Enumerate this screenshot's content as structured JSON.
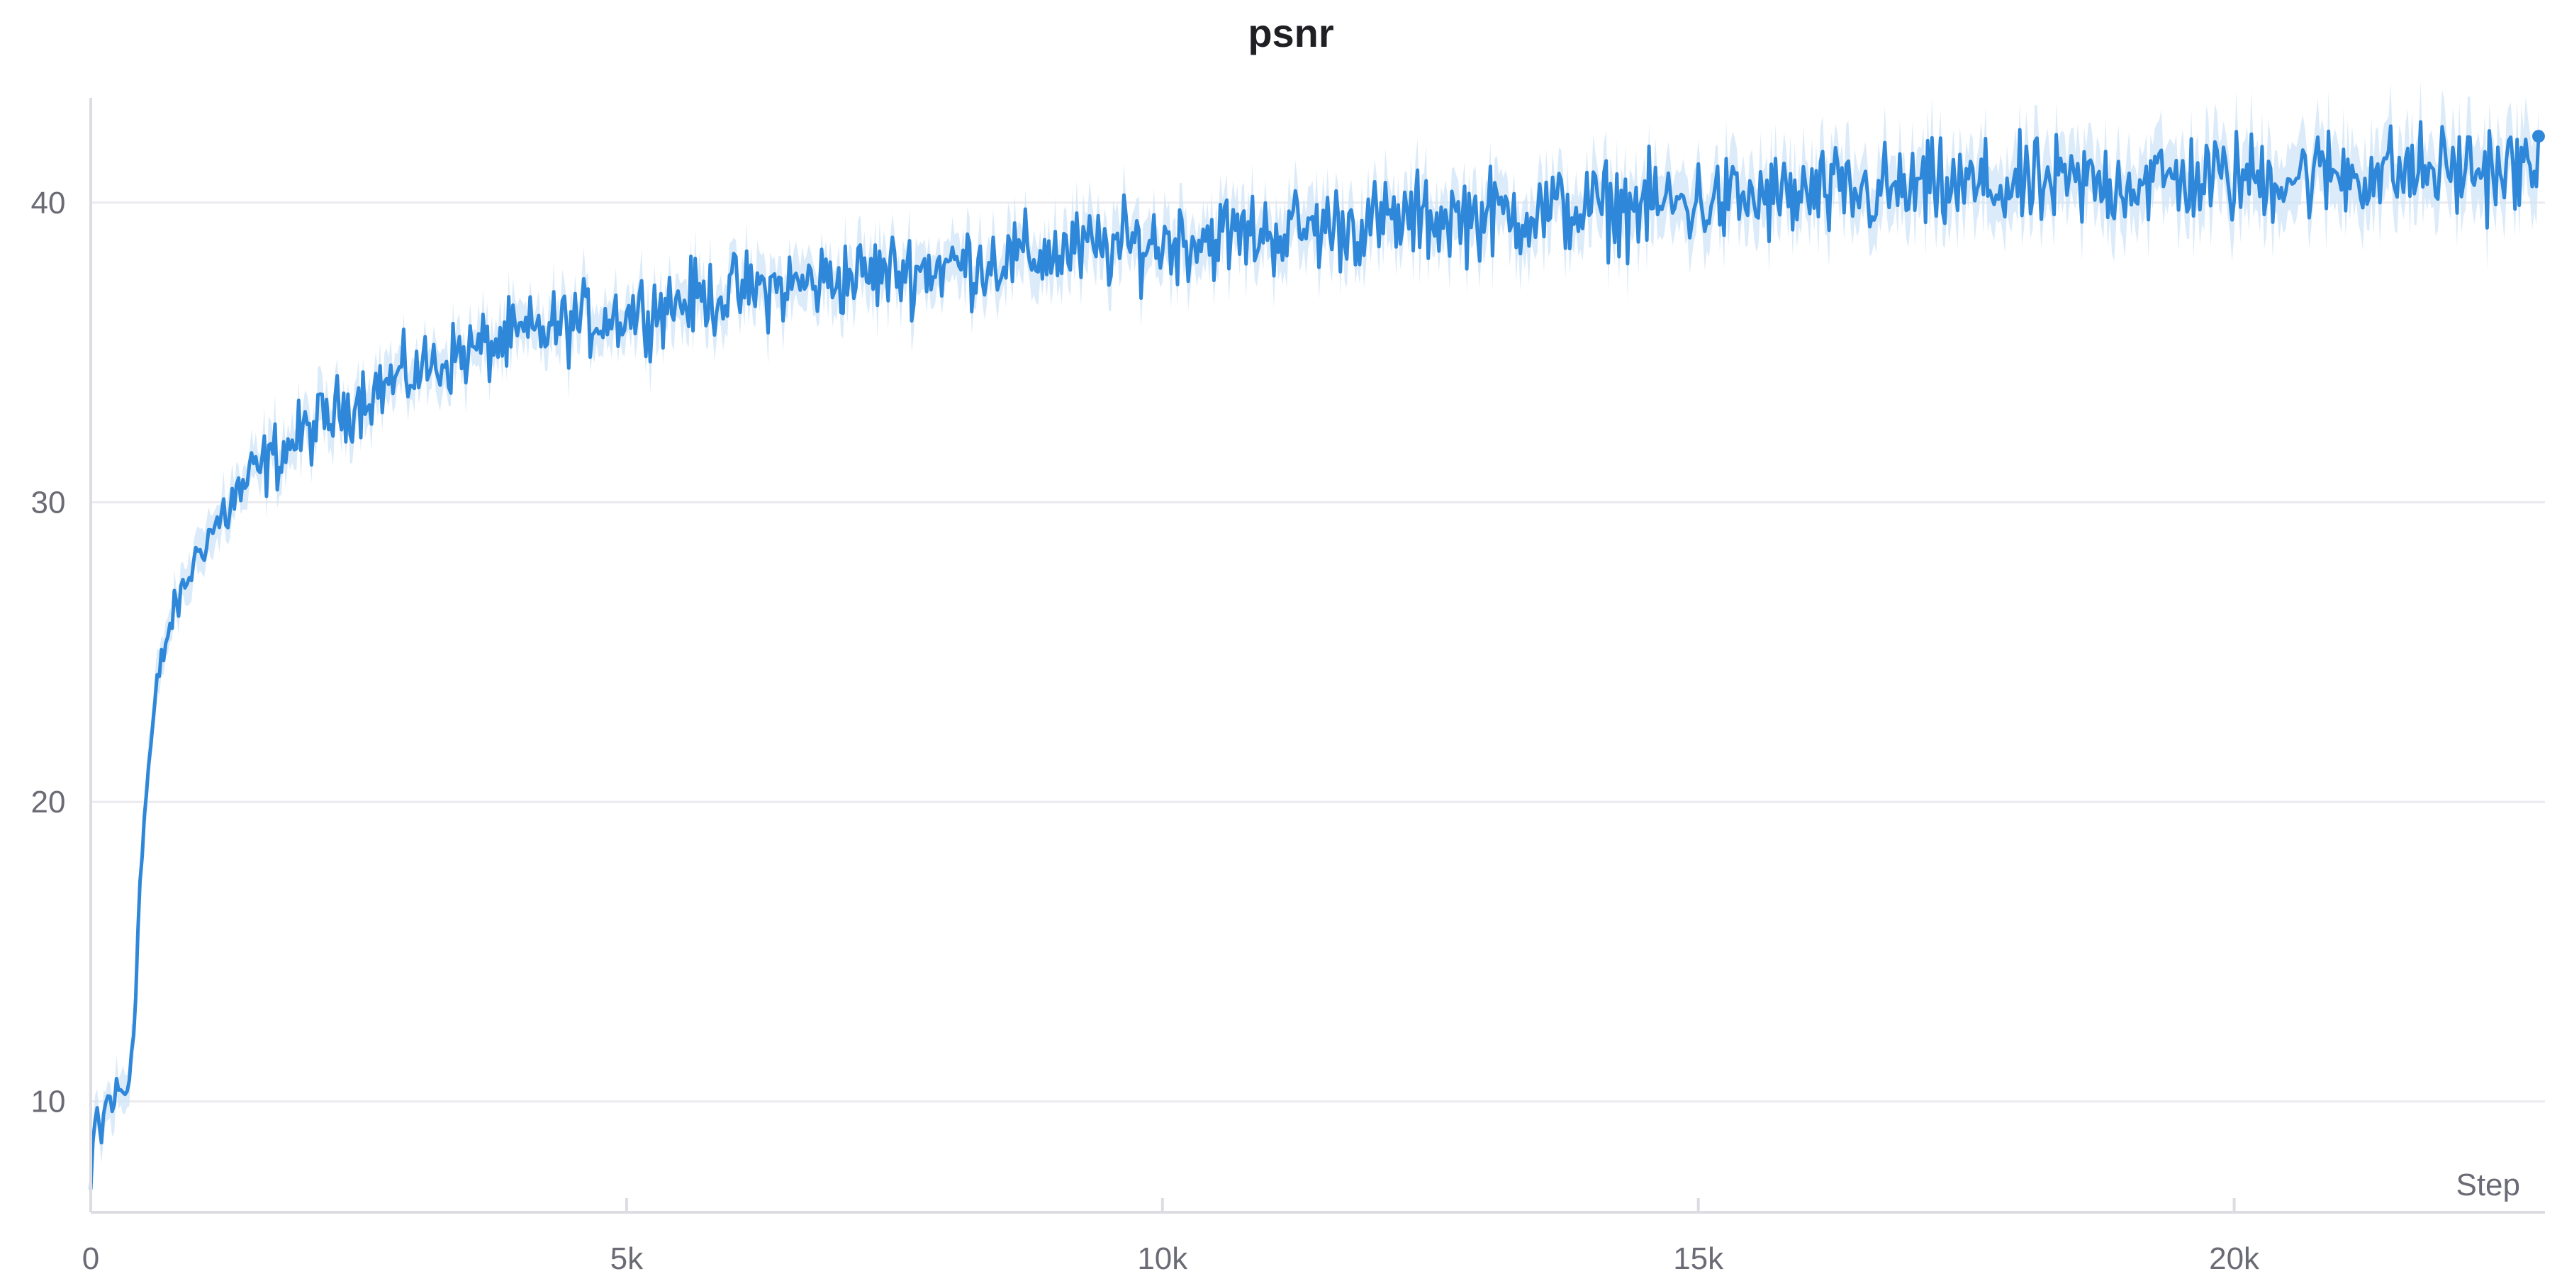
{
  "chart_data": {
    "type": "line",
    "title": "psnr",
    "xlabel": "Step",
    "ylabel": "",
    "xlim": [
      0,
      22900
    ],
    "ylim": [
      6.3,
      43.5
    ],
    "x_ticks": [
      0,
      5000,
      10000,
      15000,
      20000
    ],
    "x_tick_labels": [
      "0",
      "5k",
      "10k",
      "15k",
      "20k"
    ],
    "y_ticks": [
      10,
      20,
      30,
      40
    ],
    "y_tick_labels": [
      "10",
      "20",
      "30",
      "40"
    ],
    "grid": "horizontal",
    "legend": "none",
    "colors": {
      "line": "#2e87d8",
      "band": "#cfe4f7"
    },
    "series": [
      {
        "x": [
          0,
          50,
          100,
          150,
          200,
          250,
          300,
          350,
          400,
          450,
          500,
          550,
          600,
          650,
          700,
          750,
          800,
          900,
          1000,
          1100,
          1200,
          1300,
          1400,
          1500,
          1700,
          2000,
          2300,
          2600,
          3000,
          3500,
          4000,
          4500,
          5000,
          5500,
          6000,
          6500,
          7000,
          7500,
          8000,
          8500,
          9000,
          9500,
          10000,
          10500,
          11000,
          11500,
          12000,
          12500,
          13000,
          13500,
          14000,
          14500,
          15000,
          15500,
          16000,
          16500,
          17000,
          17500,
          18000,
          18500,
          19000,
          19500,
          20000,
          20500,
          21000,
          21500,
          22000,
          22500,
          22850
        ],
        "y": [
          7.0,
          9.7,
          8.8,
          10.2,
          9.9,
          10.4,
          10.2,
          10.5,
          12.5,
          16.5,
          19.5,
          21.5,
          23.2,
          24.5,
          25.3,
          26.0,
          26.5,
          27.4,
          28.3,
          28.9,
          29.4,
          29.9,
          30.4,
          30.8,
          31.5,
          32.3,
          33.0,
          33.7,
          34.3,
          35.0,
          35.5,
          36.0,
          36.3,
          36.7,
          37.0,
          37.2,
          37.5,
          37.7,
          37.9,
          38.1,
          38.3,
          38.5,
          38.7,
          38.9,
          39.0,
          39.2,
          39.3,
          39.5,
          39.6,
          39.7,
          39.8,
          39.9,
          40.0,
          40.1,
          40.2,
          40.3,
          40.4,
          40.5,
          40.5,
          40.6,
          40.7,
          40.8,
          40.8,
          40.9,
          41.0,
          41.0,
          41.1,
          41.1,
          41.0
        ]
      }
    ],
    "noise_amplitude": 0.55
  }
}
